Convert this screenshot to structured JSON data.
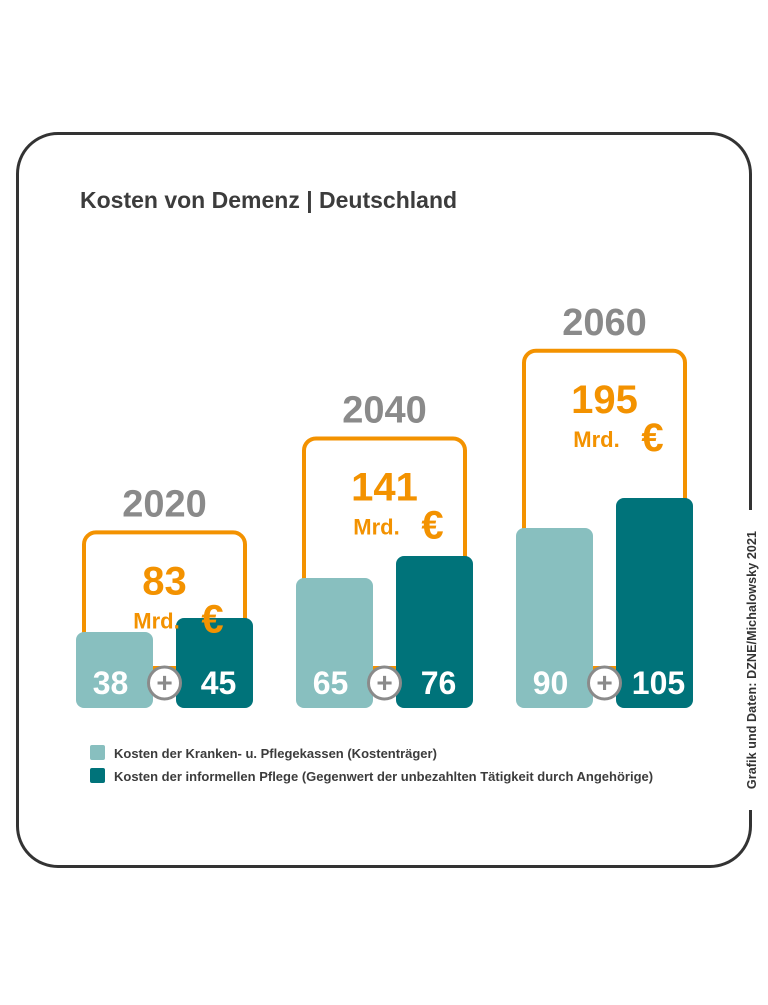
{
  "credit": "Grafik und Daten: DZNE/Michalowsky 2021",
  "colors": {
    "kostentraeger": "#88bfbf",
    "informell": "#00737a",
    "total": "#f39200",
    "year": "#8a8a8a",
    "title": "#3c3c3c",
    "plus": "#8a8a8a"
  },
  "chart_data": {
    "type": "bar",
    "title": "Kosten von Demenz | Deutschland",
    "categories": [
      "2020",
      "2040",
      "2060"
    ],
    "series": [
      {
        "name": "Kosten der Kranken- u. Pflegekassen (Kostenträger)",
        "values": [
          38,
          65,
          90
        ]
      },
      {
        "name": "Kosten der informellen Pflege (Gegenwert der unbezahlten Tätigkeit durch Angehörige)",
        "values": [
          45,
          76,
          105
        ]
      }
    ],
    "totals": [
      83,
      141,
      195
    ],
    "total_unit": "Mrd.",
    "total_symbol": "€",
    "operator": "+",
    "legend_position": "bottom-left",
    "grid": false,
    "xlabel": "",
    "ylabel": ""
  }
}
